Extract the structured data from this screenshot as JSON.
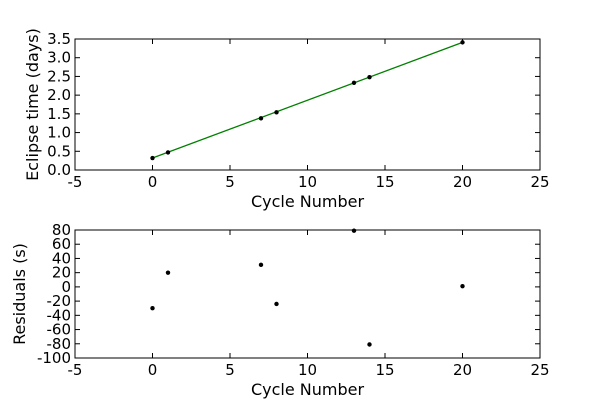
{
  "chart_data": [
    {
      "type": "line",
      "xlabel": "Cycle Number",
      "ylabel": "Eclipse time (days)",
      "xlim": [
        -5,
        25
      ],
      "ylim": [
        0.0,
        3.5
      ],
      "xticks": [
        -5,
        0,
        5,
        10,
        15,
        20,
        25
      ],
      "yticks": [
        0.0,
        0.5,
        1.0,
        1.5,
        2.0,
        2.5,
        3.0,
        3.5
      ],
      "grid": false,
      "colors": {
        "line": "#008000",
        "points": "#000000"
      },
      "series": [
        {
          "type": "scatter",
          "x": [
            0,
            1,
            7,
            8,
            13,
            14,
            20
          ],
          "y": [
            0.32,
            0.47,
            1.38,
            1.54,
            2.33,
            2.48,
            3.41
          ]
        },
        {
          "type": "line",
          "x": [
            0,
            20
          ],
          "y": [
            0.32,
            3.41
          ]
        }
      ]
    },
    {
      "type": "scatter",
      "xlabel": "Cycle Number",
      "ylabel": "Residuals (s)",
      "xlim": [
        -5,
        25
      ],
      "ylim": [
        -100,
        80
      ],
      "xticks": [
        -5,
        0,
        5,
        10,
        15,
        20,
        25
      ],
      "yticks": [
        -100,
        -80,
        -60,
        -40,
        -20,
        0,
        20,
        40,
        60,
        80
      ],
      "grid": false,
      "colors": {
        "points": "#000000"
      },
      "series": [
        {
          "x": [
            0,
            1,
            7,
            8,
            13,
            14,
            20
          ],
          "y": [
            -30,
            20,
            31,
            -24,
            79,
            -81,
            1
          ]
        }
      ]
    }
  ]
}
